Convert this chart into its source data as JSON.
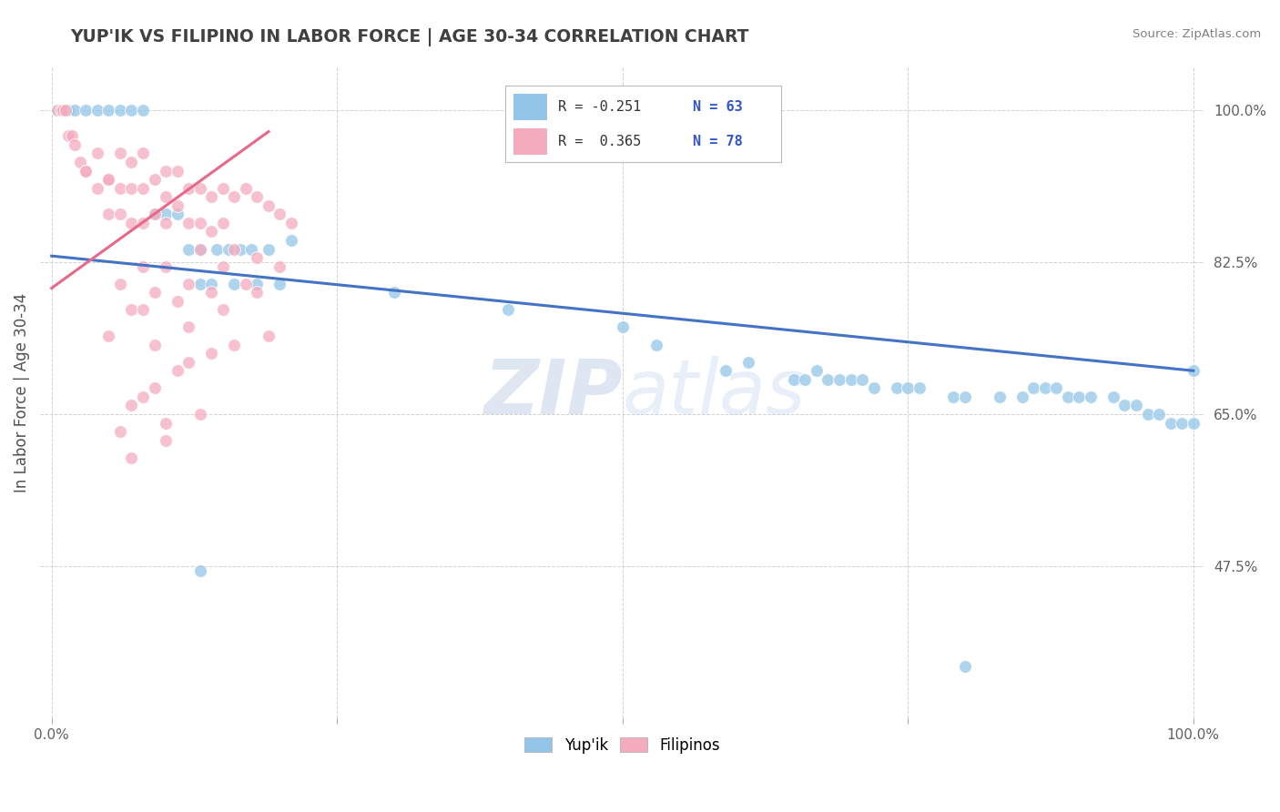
{
  "title": "YUP'IK VS FILIPINO IN LABOR FORCE | AGE 30-34 CORRELATION CHART",
  "source_text": "Source: ZipAtlas.com",
  "ylabel": "In Labor Force | Age 30-34",
  "watermark": "ZIPatlas",
  "xlim": [
    -0.01,
    1.01
  ],
  "ylim": [
    0.3,
    1.05
  ],
  "yticks": [
    0.475,
    0.65,
    0.825,
    1.0
  ],
  "yticklabels": [
    "47.5%",
    "65.0%",
    "82.5%",
    "100.0%"
  ],
  "blue_color": "#92C5E8",
  "pink_color": "#F4ABBE",
  "blue_line_color": "#4472C4",
  "pink_line_color": "#E8688A",
  "title_color": "#404040",
  "source_color": "#808080",
  "grid_color": "#CCCCCC",
  "background_color": "#FFFFFF",
  "watermark_color": "#DDEEFF",
  "blue_scatter_x": [
    0.005,
    0.01,
    0.015,
    0.02,
    0.03,
    0.04,
    0.05,
    0.06,
    0.07,
    0.08,
    0.09,
    0.1,
    0.11,
    0.12,
    0.13,
    0.145,
    0.155,
    0.165,
    0.175,
    0.19,
    0.21,
    0.13,
    0.14,
    0.16,
    0.18,
    0.2,
    0.3,
    0.4,
    0.5,
    0.53,
    0.59,
    0.61,
    0.65,
    0.66,
    0.67,
    0.68,
    0.69,
    0.7,
    0.71,
    0.72,
    0.74,
    0.75,
    0.76,
    0.79,
    0.8,
    0.83,
    0.85,
    0.86,
    0.87,
    0.88,
    0.89,
    0.9,
    0.91,
    0.93,
    0.94,
    0.95,
    0.96,
    0.97,
    0.98,
    0.99,
    1.0,
    1.0,
    0.13,
    0.8
  ],
  "blue_scatter_y": [
    1.0,
    1.0,
    1.0,
    1.0,
    1.0,
    1.0,
    1.0,
    1.0,
    1.0,
    1.0,
    0.88,
    0.88,
    0.88,
    0.84,
    0.84,
    0.84,
    0.84,
    0.84,
    0.84,
    0.84,
    0.85,
    0.8,
    0.8,
    0.8,
    0.8,
    0.8,
    0.79,
    0.77,
    0.75,
    0.73,
    0.7,
    0.71,
    0.69,
    0.69,
    0.7,
    0.69,
    0.69,
    0.69,
    0.69,
    0.68,
    0.68,
    0.68,
    0.68,
    0.67,
    0.67,
    0.67,
    0.67,
    0.68,
    0.68,
    0.68,
    0.67,
    0.67,
    0.67,
    0.67,
    0.66,
    0.66,
    0.65,
    0.65,
    0.64,
    0.64,
    0.64,
    0.7,
    0.47,
    0.36
  ],
  "pink_scatter_x": [
    0.005,
    0.008,
    0.01,
    0.012,
    0.015,
    0.018,
    0.02,
    0.025,
    0.03,
    0.03,
    0.04,
    0.04,
    0.05,
    0.05,
    0.05,
    0.06,
    0.06,
    0.06,
    0.07,
    0.07,
    0.07,
    0.08,
    0.08,
    0.08,
    0.09,
    0.09,
    0.1,
    0.1,
    0.1,
    0.11,
    0.11,
    0.12,
    0.12,
    0.13,
    0.13,
    0.14,
    0.14,
    0.15,
    0.15,
    0.16,
    0.17,
    0.18,
    0.19,
    0.2,
    0.21,
    0.06,
    0.08,
    0.1,
    0.13,
    0.16,
    0.07,
    0.09,
    0.12,
    0.15,
    0.18,
    0.05,
    0.08,
    0.11,
    0.14,
    0.17,
    0.2,
    0.09,
    0.12,
    0.15,
    0.18,
    0.1,
    0.06,
    0.07,
    0.08,
    0.09,
    0.11,
    0.12,
    0.14,
    0.16,
    0.19,
    0.07,
    0.1,
    0.13
  ],
  "pink_scatter_y": [
    1.0,
    1.0,
    1.0,
    1.0,
    0.97,
    0.97,
    0.96,
    0.94,
    0.93,
    0.93,
    0.95,
    0.91,
    0.92,
    0.92,
    0.88,
    0.95,
    0.91,
    0.88,
    0.94,
    0.91,
    0.87,
    0.95,
    0.91,
    0.87,
    0.92,
    0.88,
    0.93,
    0.9,
    0.87,
    0.93,
    0.89,
    0.91,
    0.87,
    0.91,
    0.87,
    0.9,
    0.86,
    0.91,
    0.87,
    0.9,
    0.91,
    0.9,
    0.89,
    0.88,
    0.87,
    0.8,
    0.82,
    0.82,
    0.84,
    0.84,
    0.77,
    0.79,
    0.8,
    0.82,
    0.83,
    0.74,
    0.77,
    0.78,
    0.79,
    0.8,
    0.82,
    0.73,
    0.75,
    0.77,
    0.79,
    0.64,
    0.63,
    0.66,
    0.67,
    0.68,
    0.7,
    0.71,
    0.72,
    0.73,
    0.74,
    0.6,
    0.62,
    0.65
  ],
  "blue_trend_x": [
    0.0,
    1.0
  ],
  "blue_trend_y": [
    0.832,
    0.7
  ],
  "pink_trend_x": [
    0.0,
    0.19
  ],
  "pink_trend_y": [
    0.795,
    0.975
  ]
}
